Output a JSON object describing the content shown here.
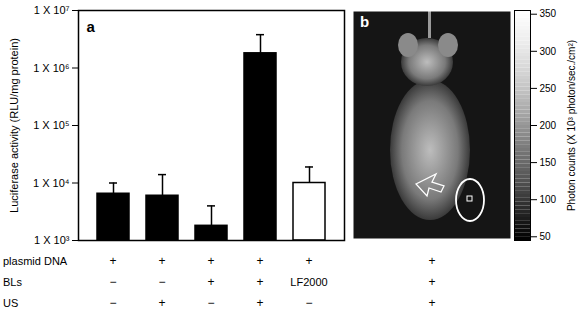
{
  "chart_data": [
    {
      "type": "bar",
      "panel_label": "a",
      "ylabel": "Luciferase activity (RLU/mg protein)",
      "log": "y",
      "ylim": [
        1000,
        10000000
      ],
      "yticks": [
        {
          "value": 1000,
          "label": "1 X 10³"
        },
        {
          "value": 10000,
          "label": "1 X 10⁴"
        },
        {
          "value": 100000,
          "label": "1 X 10⁵"
        },
        {
          "value": 1000000,
          "label": "1 X 10⁶"
        },
        {
          "value": 10000000,
          "label": "1 X 10⁷"
        }
      ],
      "values": [
        6500,
        6000,
        1800,
        1800000,
        10000
      ],
      "errors": [
        3500,
        8000,
        2200,
        2000000,
        9000
      ],
      "colors": [
        "#000000",
        "#000000",
        "#000000",
        "#000000",
        "#ffffff"
      ],
      "conditions": [
        {
          "label": "plasmid DNA",
          "values": [
            "+",
            "+",
            "+",
            "+",
            "+"
          ]
        },
        {
          "label": "BLs",
          "values": [
            "−",
            "−",
            "+",
            "+",
            "LF2000"
          ]
        },
        {
          "label": "US",
          "values": [
            "−",
            "+",
            "−",
            "+",
            "−"
          ]
        }
      ]
    },
    {
      "type": "colorbar",
      "panel_label": "b",
      "ylabel": "Photon counts (X 10³ photon/sec./cm²)",
      "ylim": [
        45,
        355
      ],
      "yticks": [
        50,
        100,
        150,
        200,
        250,
        300,
        350
      ],
      "conditions": [
        "+",
        "+",
        "+"
      ]
    }
  ]
}
